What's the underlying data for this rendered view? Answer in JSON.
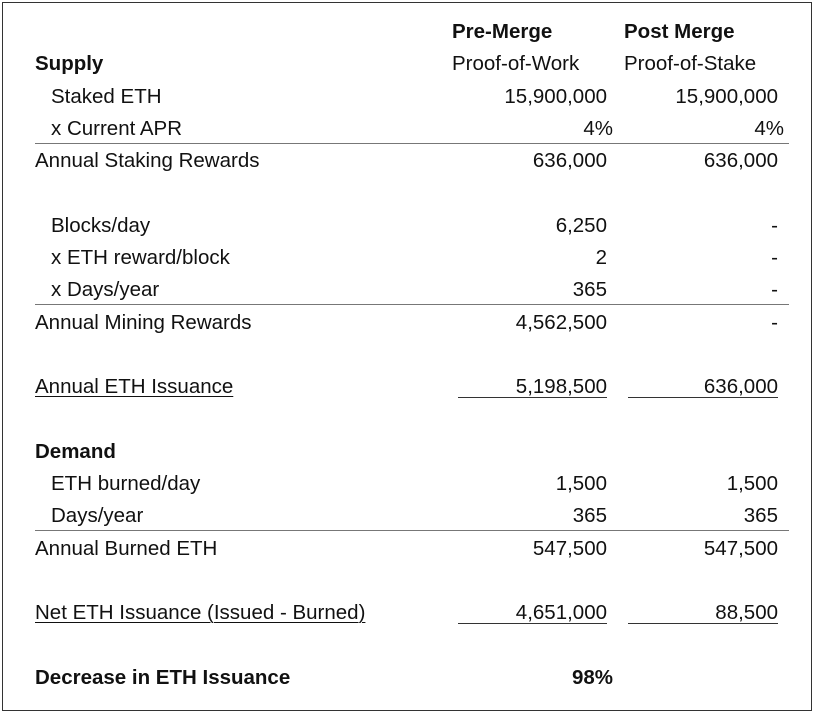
{
  "header": {
    "pre": "Pre-Merge",
    "post": "Post Merge"
  },
  "rows": [
    {
      "label": "Supply",
      "pre": "Proof-of-Work",
      "post": "Proof-of-Stake"
    },
    {
      "label": "Staked ETH",
      "pre": "15,900,000",
      "post": "15,900,000"
    },
    {
      "label": "x Current APR",
      "pre": "4%",
      "post": "4%"
    },
    {
      "label": "Annual Staking Rewards",
      "pre": "636,000",
      "post": "636,000"
    },
    {
      "label": "Blocks/day",
      "pre": "6,250",
      "post": "-"
    },
    {
      "label": "x ETH reward/block",
      "pre": "2",
      "post": "-"
    },
    {
      "label": "x Days/year",
      "pre": "365",
      "post": "-"
    },
    {
      "label": "Annual Mining Rewards",
      "pre": "4,562,500",
      "post": "-"
    },
    {
      "label": "Annual ETH Issuance",
      "pre": "5,198,500",
      "post": "636,000"
    },
    {
      "label": "Demand"
    },
    {
      "label": "ETH burned/day",
      "pre": "1,500",
      "post": "1,500"
    },
    {
      "label": "Days/year",
      "pre": "365",
      "post": "365"
    },
    {
      "label": "Annual Burned ETH",
      "pre": "547,500",
      "post": "547,500"
    },
    {
      "label": "Net ETH Issuance (Issued - Burned)",
      "pre": "4,651,000",
      "post": "88,500"
    },
    {
      "label": "Decrease in ETH Issuance",
      "pre": "98%"
    }
  ]
}
